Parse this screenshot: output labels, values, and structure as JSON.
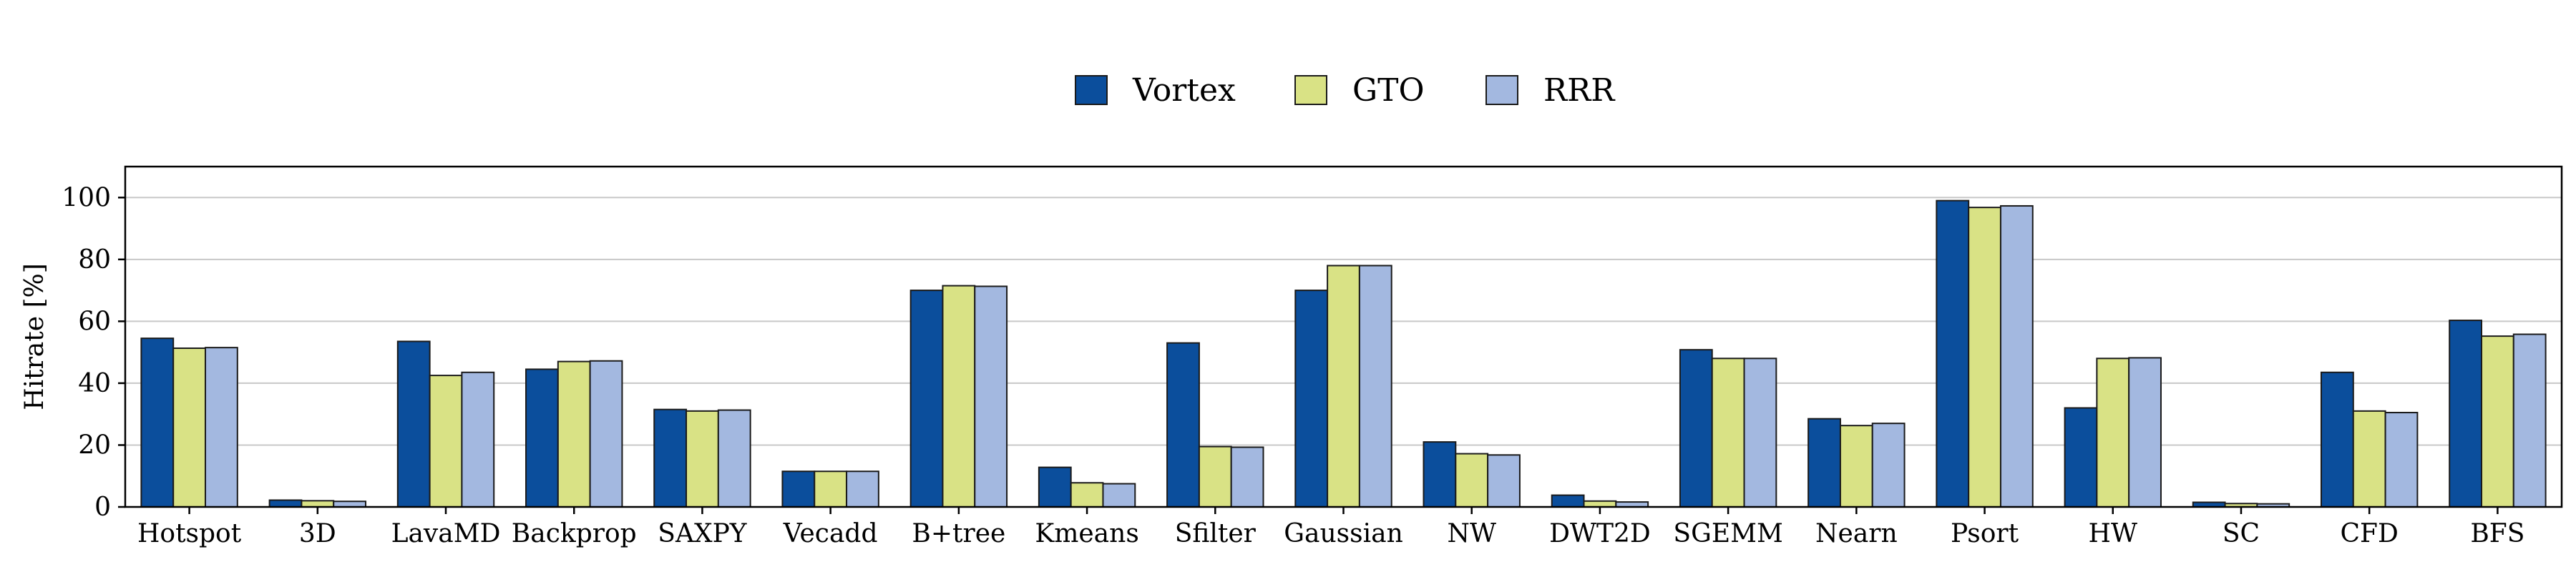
{
  "chart_data": {
    "type": "bar",
    "title": "",
    "xlabel": "",
    "ylabel": "Hitrate [%]",
    "ylim": [
      0,
      110
    ],
    "yticks": [
      0,
      20,
      40,
      60,
      80,
      100
    ],
    "grid": "horizontal",
    "legend_position": "top-center",
    "categories": [
      "Hotspot",
      "3D",
      "LavaMD",
      "Backprop",
      "SAXPY",
      "Vecadd",
      "B+tree",
      "Kmeans",
      "Sfilter",
      "Gaussian",
      "NW",
      "DWT2D",
      "SGEMM",
      "Nearn",
      "Psort",
      "HW",
      "SC",
      "CFD",
      "BFS"
    ],
    "series": [
      {
        "name": "Vortex",
        "color": "#0b4e9c",
        "values": [
          54.5,
          2.2,
          53.5,
          44.5,
          31.5,
          11.5,
          70,
          12.8,
          53,
          70,
          21,
          3.8,
          50.8,
          28.5,
          99,
          32,
          1.5,
          43.5,
          60.3
        ]
      },
      {
        "name": "GTO",
        "color": "#d9e285",
        "values": [
          51.3,
          2.0,
          42.5,
          47,
          31,
          11.5,
          71.5,
          7.8,
          19.5,
          78,
          17.2,
          1.9,
          48,
          26.3,
          96.8,
          48,
          1.1,
          31,
          55.2
        ]
      },
      {
        "name": "RRR",
        "color": "#a3b8e0",
        "values": [
          51.5,
          1.8,
          43.5,
          47.2,
          31.3,
          11.5,
          71.3,
          7.5,
          19.3,
          78,
          16.8,
          1.6,
          48,
          27,
          97.3,
          48.2,
          1.0,
          30.5,
          55.8
        ]
      }
    ]
  }
}
